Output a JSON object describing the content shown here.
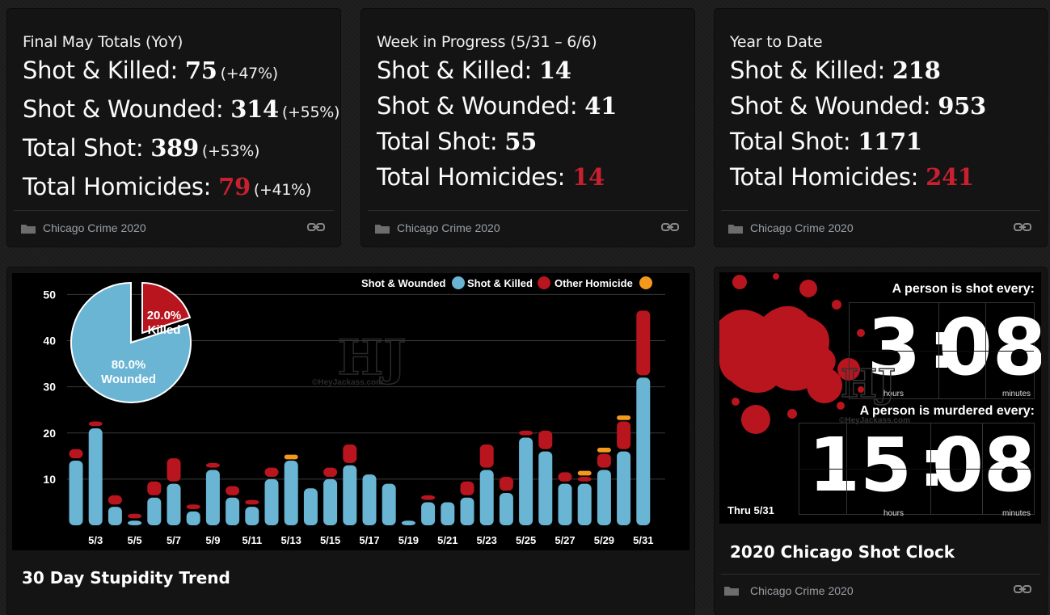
{
  "stat_cards": [
    {
      "title": "Final May Totals (YoY)",
      "rows": [
        {
          "label": "Shot & Killed:",
          "value": "75",
          "pct": "(+47%)"
        },
        {
          "label": "Shot & Wounded:",
          "value": "314",
          "pct": "(+55%)"
        },
        {
          "label": "Total Shot:",
          "value": "389",
          "pct": "(+53%)"
        },
        {
          "label": "Total Homicides:",
          "value": "79",
          "pct": "(+41%)"
        }
      ],
      "footer": "Chicago Crime 2020"
    },
    {
      "title": "Week in Progress (5/31 – 6/6)",
      "rows": [
        {
          "label": "Shot & Killed:",
          "value": "14"
        },
        {
          "label": "Shot & Wounded:",
          "value": "41"
        },
        {
          "label": "Total Shot:",
          "value": "55"
        },
        {
          "label": "Total Homicides:",
          "value": "14"
        }
      ],
      "footer": "Chicago Crime 2020"
    },
    {
      "title": "Year to Date",
      "rows": [
        {
          "label": "Shot & Killed:",
          "value": "218"
        },
        {
          "label": "Shot & Wounded:",
          "value": "953"
        },
        {
          "label": "Total Shot:",
          "value": "1171"
        },
        {
          "label": "Total Homicides:",
          "value": "241"
        }
      ],
      "footer": "Chicago Crime 2020"
    }
  ],
  "trend_card": {
    "title": "30 Day Stupidity Trend"
  },
  "clock_card": {
    "title": "2020 Chicago Shot Clock",
    "footer": "Chicago Crime 2020",
    "shot_label": "A person is shot every:",
    "shot_hours": "3",
    "shot_minutes": "08",
    "murder_label": "A person is murdered every:",
    "murder_hours": "15",
    "murder_minutes": "08",
    "hours_unit": "hours",
    "minutes_unit": "minutes",
    "thru": "Thru 5/31",
    "watermark": "HJ",
    "watermark_site": "©HeyJackass.com"
  },
  "colors": {
    "wounded": "#6ab4d4",
    "killed": "#b8151f",
    "other": "#f39a1c",
    "accent_red": "#c8202e"
  },
  "chart_data": {
    "type": "bar",
    "stacked": true,
    "categories": [
      "5/2",
      "5/3",
      "5/4",
      "5/5",
      "5/6",
      "5/7",
      "5/8",
      "5/9",
      "5/10",
      "5/11",
      "5/12",
      "5/13",
      "5/14",
      "5/15",
      "5/16",
      "5/17",
      "5/18",
      "5/19",
      "5/20",
      "5/21",
      "5/22",
      "5/23",
      "5/24",
      "5/25",
      "5/26",
      "5/27",
      "5/28",
      "5/29",
      "5/30",
      "5/31"
    ],
    "tick_labels": [
      "5/3",
      "5/5",
      "5/7",
      "5/9",
      "5/11",
      "5/13",
      "5/15",
      "5/17",
      "5/19",
      "5/21",
      "5/23",
      "5/25",
      "5/27",
      "5/29",
      "5/31"
    ],
    "series": [
      {
        "name": "Shot & Wounded",
        "values": [
          14,
          21,
          4,
          1,
          6,
          9,
          3,
          12,
          6,
          4,
          10,
          14,
          8,
          10,
          13,
          11,
          9,
          1,
          5,
          5,
          6,
          12,
          7,
          19,
          16,
          9,
          9,
          12,
          16,
          32
        ]
      },
      {
        "name": "Shot & Killed",
        "values": [
          2,
          1,
          2,
          1,
          3,
          5,
          1,
          1,
          2,
          1,
          2,
          0,
          0,
          2,
          4,
          0,
          0,
          0,
          1,
          0,
          3,
          5,
          3,
          1,
          4,
          2,
          1,
          3,
          6,
          14
        ]
      },
      {
        "name": "Other Homicide",
        "values": [
          0,
          0,
          0,
          0,
          0,
          0,
          0,
          0,
          0,
          0,
          0,
          1,
          0,
          0,
          0,
          0,
          0,
          0,
          0,
          0,
          0,
          0,
          0,
          0,
          0,
          0,
          1,
          1,
          1,
          0
        ]
      }
    ],
    "yticks": [
      10,
      20,
      30,
      40,
      50
    ],
    "ylim": [
      0,
      52
    ],
    "legend": [
      "Shot & Wounded",
      "Shot & Killed",
      "Other Homicide"
    ],
    "legend_position": "top-right",
    "pie": {
      "slices": [
        {
          "name": "Wounded",
          "value": 80.0,
          "label_pct": "80.0%",
          "label": "Wounded"
        },
        {
          "name": "Killed",
          "value": 20.0,
          "label_pct": "20.0%",
          "label": "Killed"
        }
      ]
    },
    "watermark": "HJ",
    "watermark_site": "©HeyJackass.com"
  }
}
